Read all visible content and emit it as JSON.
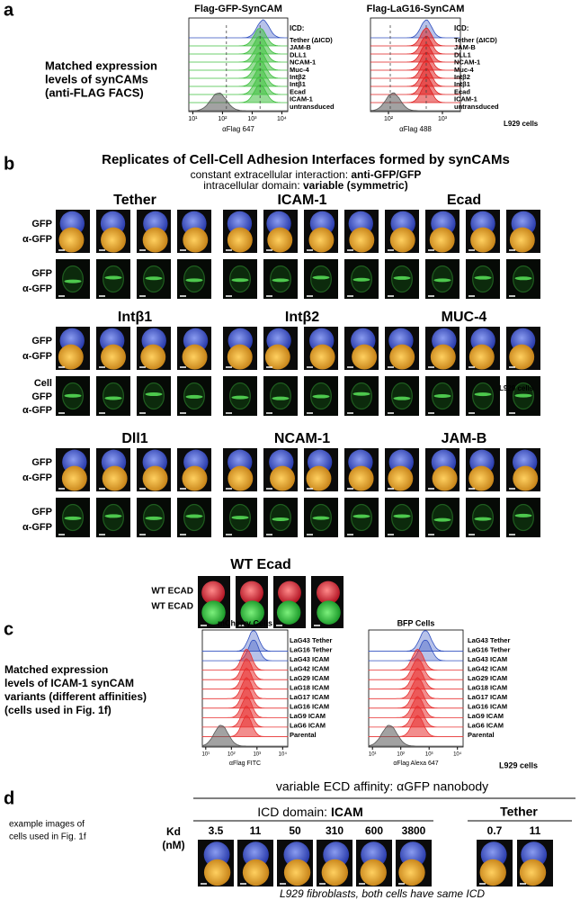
{
  "panel_a": {
    "label": "a",
    "text": [
      "Matched expression",
      "levels of synCAMs",
      "(anti-FLAG FACS)"
    ],
    "plots": [
      {
        "title": "Flag-GFP-SynCAM",
        "legend_title": "ICD:",
        "legend": [
          "Tether (ΔICD)",
          "JAM-B",
          "DLL1",
          "NCAM-1",
          "Muc-4",
          "Intβ2",
          "Intβ1",
          "Ecad",
          "ICAM-1",
          "untransduced"
        ],
        "x_label": "αFlag 647",
        "x_ticks": [
          "10¹",
          "10²",
          "10³",
          "10⁴"
        ]
      },
      {
        "title": "Flag-LaG16-SynCAM",
        "legend_title": "ICD:",
        "legend": [
          "Tether (ΔICD)",
          "JAM-B",
          "DLL1",
          "NCAM-1",
          "Muc-4",
          "Intβ2",
          "Intβ1",
          "Ecad",
          "ICAM-1",
          "untransduced"
        ],
        "x_label": "αFlag 488",
        "x_ticks": [
          "10²",
          "10³"
        ]
      }
    ],
    "note": "L929 cells"
  },
  "panel_b": {
    "label": "b",
    "title": "Replicates of Cell-Cell Adhesion Interfaces formed by synCAMs",
    "subtitle": [
      [
        "constant extracellular interaction: ",
        "anti-GFP/GFP"
      ],
      [
        "intracellular domain: ",
        "variable (symmetric)"
      ]
    ],
    "groups": [
      {
        "name": "Tether",
        "row_labels": [
          [
            "GFP",
            "α-GFP"
          ],
          [
            "GFP",
            "α-GFP"
          ]
        ]
      },
      {
        "name": "ICAM-1"
      },
      {
        "name": "Ecad"
      },
      {
        "name": "Intβ1",
        "row_labels": [
          [
            "GFP",
            "α-GFP"
          ],
          [
            "Cell",
            "GFP",
            "α-GFP"
          ]
        ]
      },
      {
        "name": "Intβ2"
      },
      {
        "name": "MUC-4"
      },
      {
        "name": "Dll1",
        "row_labels": [
          [
            "GFP",
            "α-GFP"
          ],
          [
            "GFP",
            "α-GFP"
          ]
        ]
      },
      {
        "name": "NCAM-1"
      },
      {
        "name": "JAM-B"
      }
    ],
    "wt": {
      "name": "WT Ecad",
      "row_labels": [
        "WT ECAD",
        "WT ECAD"
      ]
    },
    "note": "L929 cells"
  },
  "panel_c": {
    "label": "c",
    "text": [
      "Matched expression",
      "levels of ICAM-1 synCAM",
      "variants (different affinities)",
      "(cells used in Fig. 1f)"
    ],
    "plots": [
      {
        "title": "mCherry Cells",
        "legend": [
          "LaG43 Tether",
          "LaG16 Tether",
          "LaG43 ICAM",
          "LaG42 ICAM",
          "LaG29 ICAM",
          "LaG18 ICAM",
          "LaG17 ICAM",
          "LaG16 ICAM",
          "LaG9 ICAM",
          "LaG6 ICAM",
          "Parental"
        ],
        "x_label": "αFlag FITC",
        "x_ticks": [
          "10¹",
          "10²",
          "10³",
          "10⁴"
        ]
      },
      {
        "title": "BFP Cells",
        "legend": [
          "LaG43 Tether",
          "LaG16 Tether",
          "LaG43 ICAM",
          "LaG42 ICAM",
          "LaG29 ICAM",
          "LaG18 ICAM",
          "LaG17 ICAM",
          "LaG16 ICAM",
          "LaG9 ICAM",
          "LaG6 ICAM",
          "Parental"
        ],
        "x_label": "αFlag Alexa 647",
        "x_ticks": [
          "10¹",
          "10²",
          "10³",
          "10⁴"
        ]
      }
    ],
    "note": "L929 cells"
  },
  "panel_d": {
    "label": "d",
    "title": "variable ECD affinity: αGFP nanobody",
    "icd": [
      "ICD domain: ",
      "ICAM"
    ],
    "tether": "Tether",
    "kd": [
      "Kd",
      "(nM)"
    ],
    "icam_kd": [
      3.5,
      11,
      50,
      310,
      600,
      3800
    ],
    "tether_kd": [
      0.7,
      11
    ],
    "text": [
      "example images of",
      "cells used in Fig. 1f"
    ],
    "caption": "L929 fibroblasts, both cells have same ICD"
  }
}
